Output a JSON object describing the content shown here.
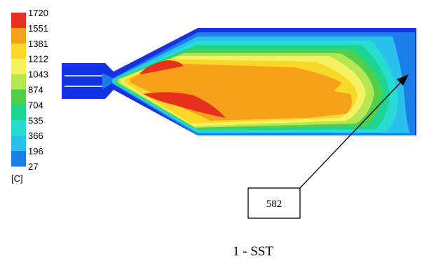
{
  "legend": {
    "unit": "[C]",
    "levels": [
      {
        "value": "1720",
        "color": "#e8311c"
      },
      {
        "value": "1551",
        "color": "#f7a11a"
      },
      {
        "value": "1381",
        "color": "#f9d82a"
      },
      {
        "value": "1212",
        "color": "#f4f262"
      },
      {
        "value": "1043",
        "color": "#b5e655"
      },
      {
        "value": "874",
        "color": "#4fcf4c"
      },
      {
        "value": "704",
        "color": "#1fd48e"
      },
      {
        "value": "535",
        "color": "#28dcd2"
      },
      {
        "value": "366",
        "color": "#2bc0ee"
      },
      {
        "value": "196",
        "color": "#1a7ee8"
      },
      {
        "value": "27",
        "color": "#1432e0"
      }
    ]
  },
  "callout": {
    "value": "582"
  },
  "caption": "1 - SST",
  "colors": {
    "hot": "#e8311c",
    "orange": "#f7a11a",
    "yellow": "#f9d82a",
    "light_yellow": "#f4f262",
    "lime": "#b5e655",
    "green": "#4fcf4c",
    "teal": "#1fd48e",
    "cyan": "#28dcd2",
    "sky": "#2bc0ee",
    "blue": "#1a7ee8",
    "deep_blue": "#1432e0"
  }
}
